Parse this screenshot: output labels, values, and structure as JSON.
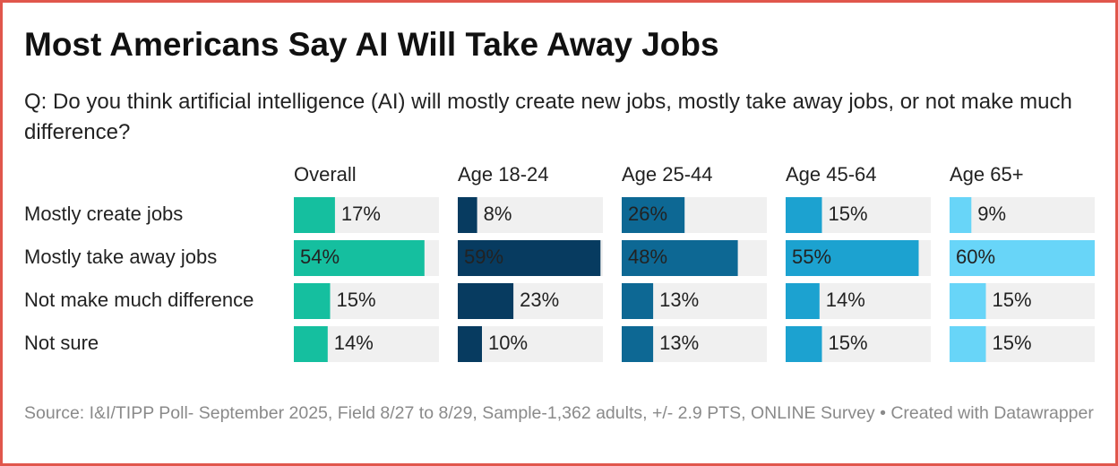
{
  "chart_data": {
    "type": "bar",
    "title": "Most Americans Say AI Will Take Away Jobs",
    "subtitle": "Q: Do you think artificial intelligence (AI) will mostly create new jobs, mostly take away jobs, or not make much difference?",
    "source": "Source: I&I/TIPP Poll- September 2025, Field 8/27 to 8/29, Sample-1,362 adults, +/- 2.9 PTS, ONLINE Survey • Created with Datawrapper",
    "categories": [
      "Mostly create jobs",
      "Mostly take away jobs",
      "Not make much difference",
      "Not sure"
    ],
    "xlim": [
      0,
      60
    ],
    "series": [
      {
        "name": "Overall",
        "color": "#15bf9f",
        "values": [
          17,
          54,
          15,
          14
        ],
        "value_labels": [
          "17%",
          "54%",
          "15%",
          "14%"
        ]
      },
      {
        "name": "Age 18-24",
        "color": "#073b60",
        "values": [
          8,
          59,
          23,
          10
        ],
        "value_labels": [
          "8%",
          "59%",
          "23%",
          "10%"
        ]
      },
      {
        "name": "Age 25-44",
        "color": "#0d6894",
        "values": [
          26,
          48,
          13,
          13
        ],
        "value_labels": [
          "26%",
          "48%",
          "13%",
          "13%"
        ]
      },
      {
        "name": "Age 45-64",
        "color": "#1ca2d0",
        "values": [
          15,
          55,
          14,
          15
        ],
        "value_labels": [
          "15%",
          "55%",
          "14%",
          "15%"
        ]
      },
      {
        "name": "Age 65+",
        "color": "#68d5f8",
        "values": [
          9,
          60,
          15,
          15
        ],
        "value_labels": [
          "9%",
          "60%",
          "15%",
          "15%"
        ]
      }
    ]
  }
}
